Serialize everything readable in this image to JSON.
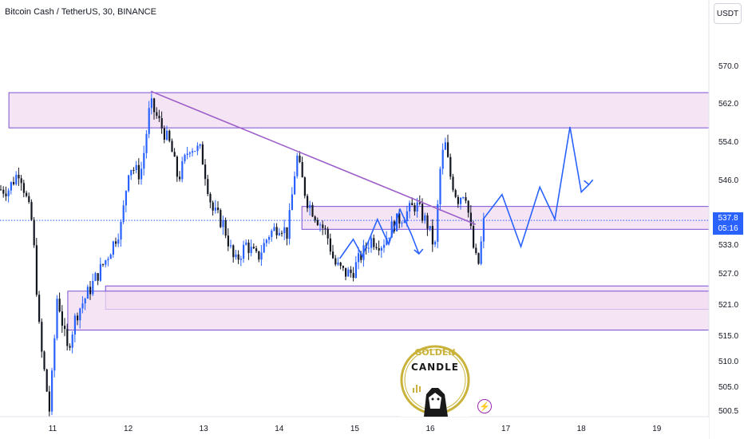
{
  "header": {
    "title": "Bitcoin Cash / TetherUS, 30, BINANCE"
  },
  "toolbar": {
    "currency_label": "USDT"
  },
  "price_tag": {
    "price": "537.8",
    "countdown": "05:16"
  },
  "logo": {
    "line1": "GOLDEN",
    "line2": "CANDLE"
  },
  "colors": {
    "up": "#2962ff",
    "down": "#131722",
    "zone_fill": "#f2dcf0",
    "zone_border": "#7a4fd4",
    "trendline": "#9c5fc9",
    "projection": "#2962ff",
    "last_price_line": "#2962ff"
  },
  "chart_data": {
    "type": "candlestick",
    "title": "Bitcoin Cash / TetherUS, 30, BINANCE",
    "x_axis": {
      "ticks": [
        "11",
        "12",
        "13",
        "14",
        "15",
        "16",
        "17",
        "18",
        "19"
      ]
    },
    "y_axis": {
      "ticks": [
        "570.0",
        "562.0",
        "554.0",
        "546.0",
        "533.0",
        "527.0",
        "521.0",
        "515.0",
        "510.0",
        "505.0",
        "500.5"
      ],
      "range": [
        499.5,
        577.5
      ],
      "position": "right"
    },
    "last_price": 537.8,
    "closes": [
      [
        10.4,
        544
      ],
      [
        10.55,
        548
      ],
      [
        10.72,
        537
      ],
      [
        10.82,
        514
      ],
      [
        10.95,
        500
      ],
      [
        11.05,
        523
      ],
      [
        11.18,
        512
      ],
      [
        11.3,
        519
      ],
      [
        11.45,
        523
      ],
      [
        11.7,
        530
      ],
      [
        11.9,
        537
      ],
      [
        12.0,
        549
      ],
      [
        12.15,
        547
      ],
      [
        12.2,
        552
      ],
      [
        12.28,
        562
      ],
      [
        12.4,
        558
      ],
      [
        12.55,
        553
      ],
      [
        12.65,
        546
      ],
      [
        12.8,
        553
      ],
      [
        12.95,
        552
      ],
      [
        13.1,
        540
      ],
      [
        13.25,
        537
      ],
      [
        13.4,
        529
      ],
      [
        13.55,
        533
      ],
      [
        13.7,
        530
      ],
      [
        13.85,
        535
      ],
      [
        14.0,
        537
      ],
      [
        14.1,
        535
      ],
      [
        14.22,
        551
      ],
      [
        14.35,
        542
      ],
      [
        14.5,
        538
      ],
      [
        14.62,
        535
      ],
      [
        14.72,
        529
      ],
      [
        14.85,
        527
      ],
      [
        14.95,
        527
      ],
      [
        15.05,
        530
      ],
      [
        15.2,
        534
      ],
      [
        15.35,
        533
      ],
      [
        15.5,
        537
      ],
      [
        15.65,
        539
      ],
      [
        15.8,
        541
      ],
      [
        15.95,
        537
      ],
      [
        16.05,
        532
      ],
      [
        16.12,
        548
      ],
      [
        16.18,
        554
      ],
      [
        16.25,
        547
      ],
      [
        16.35,
        542
      ],
      [
        16.45,
        544
      ],
      [
        16.55,
        533
      ],
      [
        16.62,
        528
      ],
      [
        16.7,
        537.8
      ]
    ],
    "zones": [
      {
        "name": "resistance",
        "top": 564.2,
        "bottom": 556.8,
        "x_start": 10.42,
        "x_end": 19.8
      },
      {
        "name": "middle",
        "top": 540.6,
        "bottom": 536.0,
        "x_start": 14.3,
        "x_end": 19.8
      },
      {
        "name": "support-inner",
        "top": 524.5,
        "bottom": 520.0,
        "x_start": 11.7,
        "x_end": 19.8
      },
      {
        "name": "support-outer",
        "top": 523.5,
        "bottom": 516.0,
        "x_start": 11.2,
        "x_end": 19.8
      }
    ],
    "trendline": [
      [
        12.3,
        564.5
      ],
      [
        16.6,
        537.0
      ]
    ],
    "projection": [
      [
        16.7,
        538.0
      ],
      [
        16.95,
        543.0
      ],
      [
        17.2,
        532.5
      ],
      [
        17.45,
        544.5
      ],
      [
        17.65,
        538.0
      ],
      [
        17.85,
        557.0
      ],
      [
        18.0,
        543.5
      ],
      [
        18.1,
        545.0
      ]
    ],
    "mini_projection": [
      [
        14.8,
        530.0
      ],
      [
        14.98,
        534.0
      ],
      [
        15.1,
        530.5
      ],
      [
        15.3,
        538.0
      ],
      [
        15.45,
        533.0
      ],
      [
        15.6,
        540.0
      ],
      [
        15.75,
        535.0
      ],
      [
        15.85,
        531.0
      ]
    ],
    "grid": false,
    "legend": "none"
  }
}
